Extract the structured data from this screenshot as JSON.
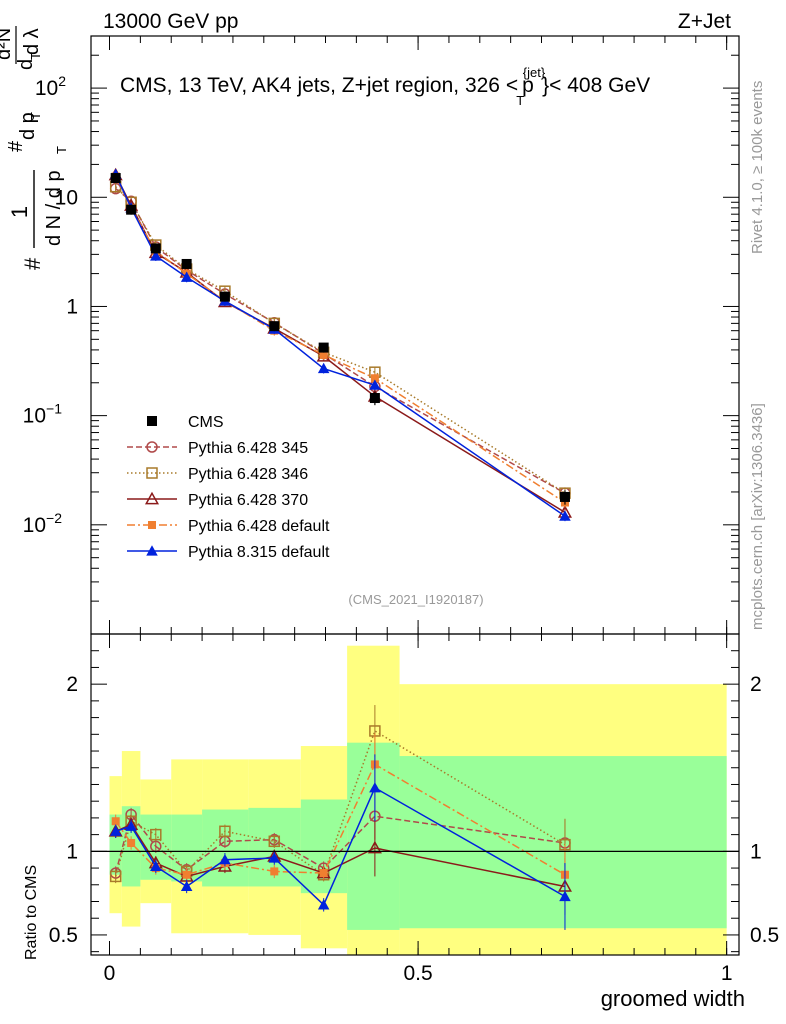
{
  "header": {
    "left": "13000 GeV pp",
    "right": "Z+Jet"
  },
  "side_labels": {
    "rivet": "Rivet 4.1.0, ≥ 100k events",
    "mcplots": "mcplots.cern.ch [arXiv:1306.3436]"
  },
  "watermark": "(CMS_2021_I1920187)",
  "chart_data": {
    "type": "line",
    "title": {
      "text": "CMS, 13 TeV, AK4 jets, Z+jet region, 326 <",
      "sym": "p",
      "sup": "{jet}",
      "sub": "T",
      "tail": "}< 408 GeV"
    },
    "xlabel": "groomed width",
    "ylabel": {
      "pre": "#",
      "num": "1",
      "den": "d N / d p",
      "den_sub": "T",
      "mid": "#",
      "mid_num": "d p",
      "mid_num_sub": "T",
      "mid_den": "d",
      "mid_den_sub": "T",
      "right": "d²N",
      "right_den": "d λ"
    },
    "ratio_ylabel": "Ratio to CMS",
    "xlim": [
      -0.03,
      1.02
    ],
    "ylim": [
      0.001,
      300
    ],
    "yscale": "log",
    "ratio_ylim": [
      0.38,
      2.3
    ],
    "x_ticks": [
      {
        "v": 0,
        "label": "0"
      },
      {
        "v": 0.5,
        "label": "0.5"
      },
      {
        "v": 1,
        "label": "1"
      }
    ],
    "y_ticks": [
      {
        "v": 0.01,
        "base": "10",
        "exp": "−2"
      },
      {
        "v": 0.1,
        "base": "10",
        "exp": "−1"
      },
      {
        "v": 1,
        "base": "1",
        "exp": ""
      },
      {
        "v": 10,
        "base": "10",
        "exp": ""
      },
      {
        "v": 100,
        "base": "10",
        "exp": "2"
      }
    ],
    "ratio_ticks": [
      {
        "v": 0.5,
        "label": "0.5"
      },
      {
        "v": 1,
        "label": "1"
      },
      {
        "v": 2,
        "label": "2"
      }
    ],
    "x": [
      0.01,
      0.035,
      0.075,
      0.125,
      0.187,
      0.267,
      0.347,
      0.43,
      0.738
    ],
    "band_edges": [
      0.0,
      0.02,
      0.05,
      0.1,
      0.15,
      0.225,
      0.31,
      0.385,
      0.47,
      1.0
    ],
    "band_yellow": [
      [
        0.63,
        1.45
      ],
      [
        0.55,
        1.6
      ],
      [
        0.69,
        1.43
      ],
      [
        0.51,
        1.55
      ],
      [
        0.51,
        1.55
      ],
      [
        0.5,
        1.55
      ],
      [
        0.42,
        1.63
      ],
      [
        0.38,
        2.23
      ],
      [
        0.36,
        2.0
      ]
    ],
    "band_green": [
      [
        0.86,
        1.22
      ],
      [
        0.79,
        1.27
      ],
      [
        0.83,
        1.22
      ],
      [
        0.82,
        1.22
      ],
      [
        0.79,
        1.25
      ],
      [
        0.79,
        1.26
      ],
      [
        0.75,
        1.31
      ],
      [
        0.53,
        1.65
      ],
      [
        0.54,
        1.57
      ]
    ],
    "data": {
      "name": "CMS",
      "values": [
        15.0,
        7.7,
        3.4,
        2.45,
        1.23,
        0.66,
        0.42,
        0.145,
        0.018
      ],
      "err": [
        0.1,
        0.1,
        0.1,
        0.1,
        0.1,
        0.1,
        0.1,
        0.14,
        0.15
      ]
    },
    "series": [
      {
        "name": "Pythia 6.428 345",
        "color": "#b04a4a",
        "dash": "6,3",
        "marker": "circle-open",
        "values": [
          12.0,
          9.2,
          3.5,
          2.15,
          1.3,
          0.71,
          0.37,
          0.185,
          0.0195
        ],
        "ratio": [
          0.87,
          1.22,
          1.03,
          0.89,
          1.06,
          1.07,
          0.9,
          1.21,
          1.05
        ]
      },
      {
        "name": "Pythia 6.428 346",
        "color": "#a87a2a",
        "dash": "1.5,2.5",
        "marker": "square-open",
        "values": [
          12.5,
          9.0,
          3.65,
          2.2,
          1.38,
          0.7,
          0.38,
          0.25,
          0.0195
        ],
        "ratio": [
          0.85,
          1.18,
          1.1,
          0.88,
          1.12,
          1.06,
          0.86,
          1.72,
          1.04
        ]
      },
      {
        "name": "Pythia 6.428 370",
        "color": "#8b1a1a",
        "dash": "",
        "marker": "triangle-open",
        "values": [
          16.0,
          8.4,
          3.1,
          2.05,
          1.1,
          0.63,
          0.35,
          0.15,
          0.013
        ],
        "ratio": [
          1.12,
          1.16,
          0.93,
          0.85,
          0.91,
          0.97,
          0.87,
          1.02,
          0.79
        ]
      },
      {
        "name": "Pythia 6.428 default",
        "color": "#f07f30",
        "dash": "8,3,2,3",
        "marker": "square-filled",
        "values": [
          15.5,
          8.0,
          3.2,
          2.0,
          1.12,
          0.6,
          0.36,
          0.22,
          0.016
        ],
        "ratio": [
          1.18,
          1.05,
          0.9,
          0.86,
          0.93,
          0.88,
          0.87,
          1.52,
          0.86
        ]
      },
      {
        "name": "Pythia 8.315 default",
        "color": "#0022dd",
        "dash": "",
        "marker": "triangle-filled",
        "values": [
          16.2,
          8.0,
          2.9,
          1.85,
          1.12,
          0.62,
          0.27,
          0.19,
          0.012
        ],
        "ratio": [
          1.12,
          1.15,
          0.91,
          0.79,
          0.95,
          0.96,
          0.68,
          1.38,
          0.73
        ]
      }
    ]
  }
}
